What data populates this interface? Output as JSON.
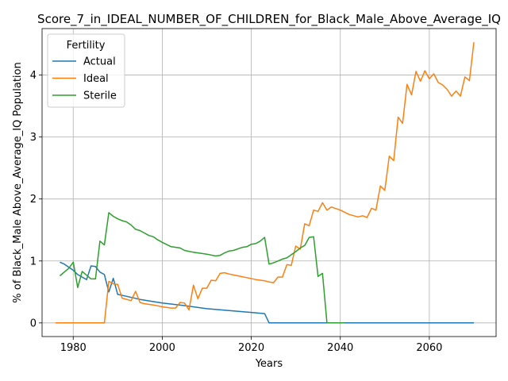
{
  "chart_data": {
    "type": "line",
    "title": "Score_7_in_IDEAL_NUMBER_OF_CHILDREN_for_Black_Male_Above_Average_IQ",
    "xlabel": "Years",
    "ylabel": "% of Black_Male Above_Average_IQ Population",
    "xlim": [
      1973,
      2075
    ],
    "ylim": [
      -0.22,
      4.75
    ],
    "xticks": [
      1980,
      2000,
      2020,
      2040,
      2060
    ],
    "yticks": [
      0,
      1,
      2,
      3,
      4
    ],
    "grid": true,
    "legend": {
      "title": "Fertility",
      "placement": "top-left"
    },
    "series": [
      {
        "name": "Actual",
        "color": "#1f77b4",
        "points": [
          [
            1977,
            0.98
          ],
          [
            1978,
            0.95
          ],
          [
            1979,
            0.9
          ],
          [
            1980,
            0.85
          ],
          [
            1981,
            0.78
          ],
          [
            1982,
            0.74
          ],
          [
            1983,
            0.7
          ],
          [
            1984,
            0.92
          ],
          [
            1985,
            0.91
          ],
          [
            1986,
            0.82
          ],
          [
            1987,
            0.78
          ],
          [
            1988,
            0.5
          ],
          [
            1989,
            0.72
          ],
          [
            1990,
            0.46
          ],
          [
            1992,
            0.43
          ],
          [
            1995,
            0.38
          ],
          [
            2000,
            0.32
          ],
          [
            2005,
            0.28
          ],
          [
            2010,
            0.23
          ],
          [
            2015,
            0.2
          ],
          [
            2020,
            0.17
          ],
          [
            2023,
            0.15
          ],
          [
            2024,
            0.0
          ],
          [
            2030,
            0.0
          ],
          [
            2040,
            0.0
          ],
          [
            2050,
            0.0
          ],
          [
            2060,
            0.0
          ],
          [
            2070,
            0.0
          ]
        ]
      },
      {
        "name": "Ideal",
        "color": "#ff7f0e",
        "points": [
          [
            1976,
            0.0
          ],
          [
            1980,
            0.0
          ],
          [
            1985,
            0.0
          ],
          [
            1987,
            0.0
          ],
          [
            1988,
            0.67
          ],
          [
            1989,
            0.63
          ],
          [
            1990,
            0.62
          ],
          [
            1991,
            0.4
          ],
          [
            1992,
            0.38
          ],
          [
            1993,
            0.36
          ],
          [
            1994,
            0.51
          ],
          [
            1995,
            0.33
          ],
          [
            1996,
            0.31
          ],
          [
            1998,
            0.29
          ],
          [
            2000,
            0.26
          ],
          [
            2002,
            0.24
          ],
          [
            2003,
            0.24
          ],
          [
            2004,
            0.33
          ],
          [
            2005,
            0.32
          ],
          [
            2006,
            0.21
          ],
          [
            2007,
            0.61
          ],
          [
            2008,
            0.39
          ],
          [
            2009,
            0.56
          ],
          [
            2010,
            0.56
          ],
          [
            2011,
            0.69
          ],
          [
            2012,
            0.68
          ],
          [
            2013,
            0.8
          ],
          [
            2014,
            0.81
          ],
          [
            2015,
            0.79
          ],
          [
            2017,
            0.76
          ],
          [
            2019,
            0.73
          ],
          [
            2021,
            0.7
          ],
          [
            2023,
            0.68
          ],
          [
            2024,
            0.66
          ],
          [
            2025,
            0.65
          ],
          [
            2026,
            0.74
          ],
          [
            2027,
            0.74
          ],
          [
            2028,
            0.94
          ],
          [
            2029,
            0.93
          ],
          [
            2030,
            1.24
          ],
          [
            2031,
            1.19
          ],
          [
            2032,
            1.6
          ],
          [
            2033,
            1.57
          ],
          [
            2034,
            1.82
          ],
          [
            2035,
            1.8
          ],
          [
            2036,
            1.94
          ],
          [
            2037,
            1.82
          ],
          [
            2038,
            1.87
          ],
          [
            2040,
            1.82
          ],
          [
            2042,
            1.75
          ],
          [
            2044,
            1.71
          ],
          [
            2045,
            1.73
          ],
          [
            2046,
            1.7
          ],
          [
            2047,
            1.85
          ],
          [
            2048,
            1.82
          ],
          [
            2049,
            2.21
          ],
          [
            2050,
            2.14
          ],
          [
            2051,
            2.69
          ],
          [
            2052,
            2.62
          ],
          [
            2053,
            3.32
          ],
          [
            2054,
            3.22
          ],
          [
            2055,
            3.85
          ],
          [
            2056,
            3.68
          ],
          [
            2057,
            4.06
          ],
          [
            2058,
            3.9
          ],
          [
            2059,
            4.07
          ],
          [
            2060,
            3.94
          ],
          [
            2061,
            4.02
          ],
          [
            2062,
            3.88
          ],
          [
            2063,
            3.84
          ],
          [
            2064,
            3.77
          ],
          [
            2065,
            3.66
          ],
          [
            2066,
            3.74
          ],
          [
            2067,
            3.66
          ],
          [
            2068,
            3.97
          ],
          [
            2069,
            3.91
          ],
          [
            2070,
            4.53
          ]
        ]
      },
      {
        "name": "Sterile",
        "color": "#2ca02c",
        "points": [
          [
            1977,
            0.76
          ],
          [
            1979,
            0.88
          ],
          [
            1980,
            0.98
          ],
          [
            1981,
            0.57
          ],
          [
            1982,
            0.83
          ],
          [
            1983,
            0.77
          ],
          [
            1984,
            0.71
          ],
          [
            1985,
            0.71
          ],
          [
            1986,
            1.32
          ],
          [
            1987,
            1.26
          ],
          [
            1988,
            1.78
          ],
          [
            1989,
            1.72
          ],
          [
            1990,
            1.68
          ],
          [
            1991,
            1.65
          ],
          [
            1992,
            1.63
          ],
          [
            1993,
            1.58
          ],
          [
            1994,
            1.51
          ],
          [
            1995,
            1.49
          ],
          [
            1996,
            1.45
          ],
          [
            1997,
            1.41
          ],
          [
            1998,
            1.39
          ],
          [
            1999,
            1.34
          ],
          [
            2000,
            1.3
          ],
          [
            2002,
            1.23
          ],
          [
            2004,
            1.21
          ],
          [
            2005,
            1.17
          ],
          [
            2007,
            1.14
          ],
          [
            2008,
            1.13
          ],
          [
            2010,
            1.11
          ],
          [
            2012,
            1.08
          ],
          [
            2013,
            1.09
          ],
          [
            2014,
            1.13
          ],
          [
            2015,
            1.16
          ],
          [
            2016,
            1.17
          ],
          [
            2018,
            1.22
          ],
          [
            2019,
            1.23
          ],
          [
            2020,
            1.27
          ],
          [
            2021,
            1.28
          ],
          [
            2022,
            1.32
          ],
          [
            2023,
            1.38
          ],
          [
            2024,
            0.95
          ],
          [
            2025,
            0.97
          ],
          [
            2026,
            1.0
          ],
          [
            2027,
            1.03
          ],
          [
            2028,
            1.05
          ],
          [
            2029,
            1.1
          ],
          [
            2030,
            1.15
          ],
          [
            2031,
            1.21
          ],
          [
            2032,
            1.25
          ],
          [
            2033,
            1.38
          ],
          [
            2034,
            1.39
          ],
          [
            2035,
            0.75
          ],
          [
            2036,
            0.8
          ],
          [
            2037,
            0.0
          ],
          [
            2041,
            0.0
          ]
        ]
      }
    ]
  }
}
